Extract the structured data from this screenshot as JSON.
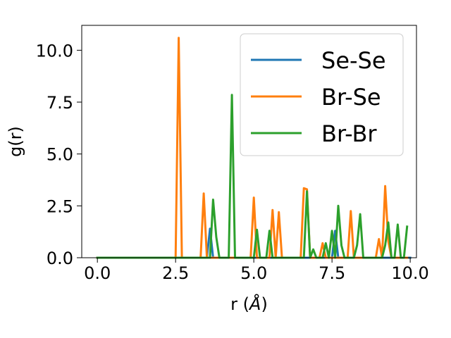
{
  "chart_data": {
    "type": "line",
    "xlabel": "r (",
    "xlabel_unit": "Å",
    "xlabel_close": ")",
    "ylabel": "g(r)",
    "xlim": [
      -0.5,
      10.2
    ],
    "ylim": [
      0,
      11.2
    ],
    "xticks": [
      0.0,
      2.5,
      5.0,
      7.5,
      10.0
    ],
    "xtick_labels": [
      "0.0",
      "2.5",
      "5.0",
      "7.5",
      "10.0"
    ],
    "yticks": [
      0.0,
      2.5,
      5.0,
      7.5,
      10.0
    ],
    "ytick_labels": [
      "0.0",
      "2.5",
      "5.0",
      "7.5",
      "10.0"
    ],
    "grid": false,
    "legend_position": "top-right",
    "series": [
      {
        "name": "Se-Se",
        "color": "#1f77b4",
        "points": [
          [
            0,
            0
          ],
          [
            3.5,
            0
          ],
          [
            3.6,
            1.4
          ],
          [
            3.7,
            0
          ],
          [
            7.5,
            0
          ],
          [
            7.6,
            1.3
          ],
          [
            7.7,
            0
          ],
          [
            10.0,
            0
          ]
        ]
      },
      {
        "name": "Br-Se",
        "color": "#ff7f0e",
        "points": [
          [
            0,
            0
          ],
          [
            2.5,
            0
          ],
          [
            2.6,
            10.6
          ],
          [
            2.7,
            0
          ],
          [
            3.3,
            0
          ],
          [
            3.4,
            3.1
          ],
          [
            3.5,
            0
          ],
          [
            4.9,
            0
          ],
          [
            5.0,
            2.9
          ],
          [
            5.1,
            0
          ],
          [
            5.5,
            0
          ],
          [
            5.6,
            2.3
          ],
          [
            5.7,
            0
          ],
          [
            5.8,
            2.2
          ],
          [
            5.9,
            0
          ],
          [
            6.5,
            0
          ],
          [
            6.6,
            3.35
          ],
          [
            6.7,
            3.3
          ],
          [
            6.8,
            0
          ],
          [
            7.1,
            0
          ],
          [
            7.2,
            0.7
          ],
          [
            7.3,
            0
          ],
          [
            8.0,
            0
          ],
          [
            8.1,
            2.25
          ],
          [
            8.2,
            0
          ],
          [
            8.9,
            0
          ],
          [
            9.0,
            0.9
          ],
          [
            9.1,
            0
          ],
          [
            9.2,
            3.45
          ],
          [
            9.3,
            0.8
          ],
          [
            9.4,
            0
          ],
          [
            9.9,
            0
          ]
        ]
      },
      {
        "name": "Br-Br",
        "color": "#2ca02c",
        "points": [
          [
            0,
            0
          ],
          [
            3.6,
            0
          ],
          [
            3.7,
            2.8
          ],
          [
            3.8,
            1.0
          ],
          [
            3.9,
            0
          ],
          [
            4.2,
            0
          ],
          [
            4.3,
            7.85
          ],
          [
            4.4,
            0
          ],
          [
            5.0,
            0
          ],
          [
            5.1,
            1.35
          ],
          [
            5.2,
            0
          ],
          [
            5.4,
            0
          ],
          [
            5.5,
            1.3
          ],
          [
            5.6,
            0
          ],
          [
            6.6,
            0
          ],
          [
            6.7,
            3.2
          ],
          [
            6.8,
            0
          ],
          [
            6.9,
            0.4
          ],
          [
            7.0,
            0
          ],
          [
            7.2,
            0
          ],
          [
            7.3,
            0.7
          ],
          [
            7.4,
            0
          ],
          [
            7.5,
            1.3
          ],
          [
            7.6,
            0
          ],
          [
            7.7,
            2.5
          ],
          [
            7.8,
            0.6
          ],
          [
            7.9,
            0
          ],
          [
            8.2,
            0
          ],
          [
            8.3,
            0.6
          ],
          [
            8.4,
            2.1
          ],
          [
            8.5,
            0
          ],
          [
            9.1,
            0
          ],
          [
            9.2,
            0.6
          ],
          [
            9.3,
            1.7
          ],
          [
            9.4,
            0
          ],
          [
            9.5,
            0
          ],
          [
            9.6,
            1.6
          ],
          [
            9.7,
            0
          ],
          [
            9.8,
            0
          ],
          [
            9.9,
            1.5
          ]
        ]
      }
    ]
  }
}
